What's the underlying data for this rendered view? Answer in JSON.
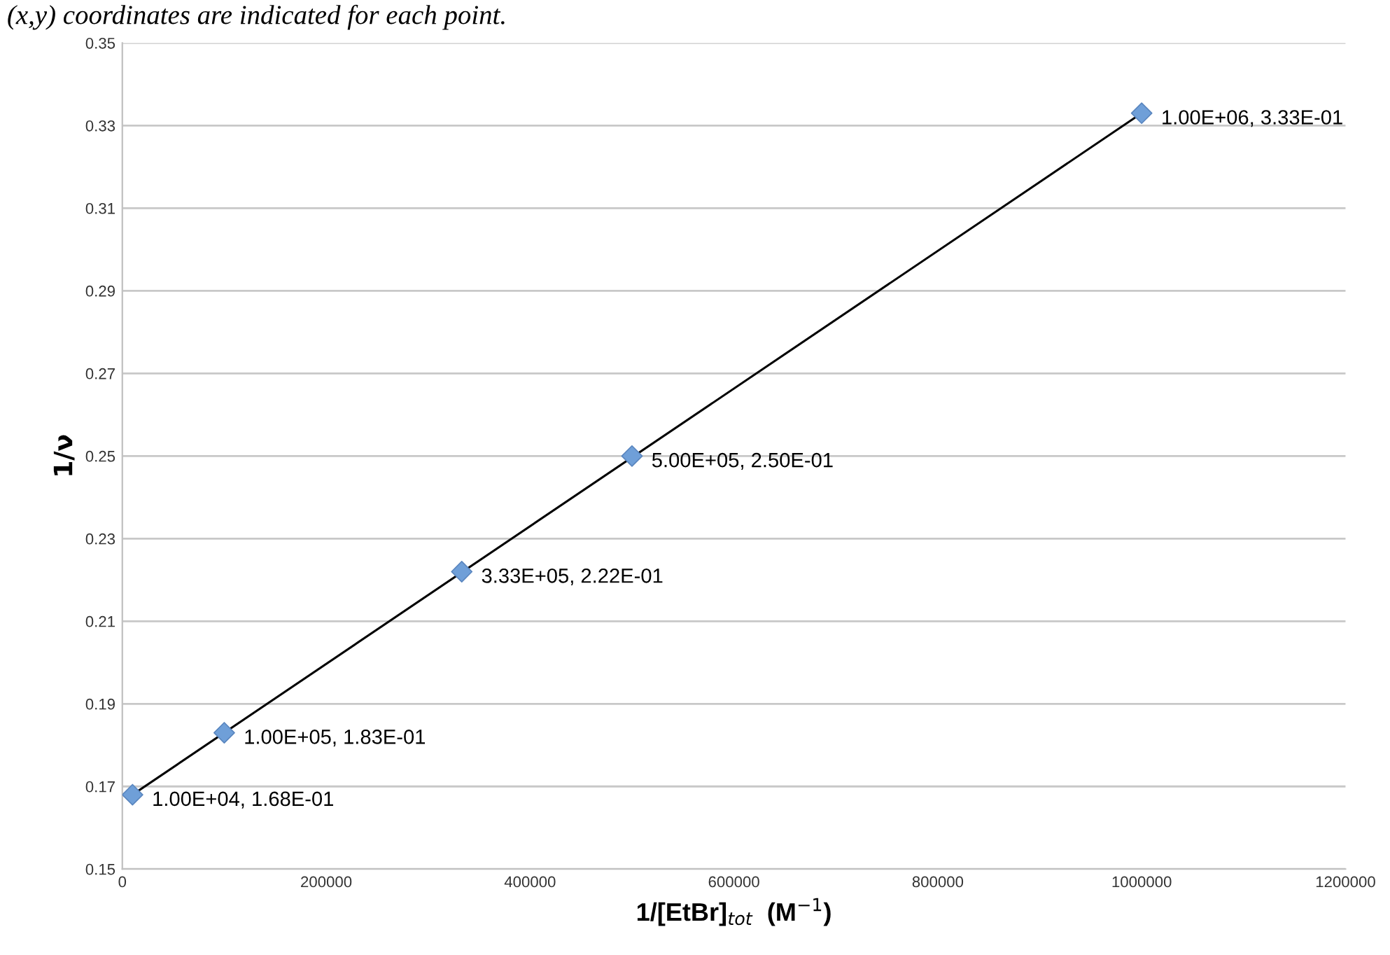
{
  "chart_data": {
    "type": "scatter",
    "xlabel": "1/[EtBr]$_{tot}$  (M$^{−1}$)",
    "ylabel": "1/ν",
    "annotations": [
      "(x,y) coordinates are indicated for each point."
    ],
    "series": [
      {
        "type": "line",
        "color": "#000000",
        "x": [
          10000,
          1000000
        ],
        "values": [
          0.168,
          0.333
        ],
        "marker": "none"
      },
      {
        "color": "#6f9fd8",
        "marker": "diamond",
        "x": [
          10000,
          100000,
          333000,
          500000,
          1000000
        ],
        "values": [
          0.168,
          0.183,
          0.222,
          0.25,
          0.333
        ],
        "value_labels": [
          "1.00E+04, 1.68E-01",
          "1.00E+05, 1.83E-01",
          "3.33E+05, 2.22E-01",
          "5.00E+05, 2.50E-01",
          "1.00E+06, 3.33E-01"
        ]
      }
    ],
    "xlim": [
      0,
      1200000
    ],
    "xticks": [
      0,
      200000,
      400000,
      600000,
      800000,
      1000000,
      1200000
    ],
    "ylim": [
      0.15,
      0.35
    ],
    "yticks": [
      0.15,
      0.17,
      0.19,
      0.21,
      0.23,
      0.25,
      0.27,
      0.29,
      0.31,
      0.33,
      0.35
    ],
    "grid": "y",
    "legend": false
  }
}
